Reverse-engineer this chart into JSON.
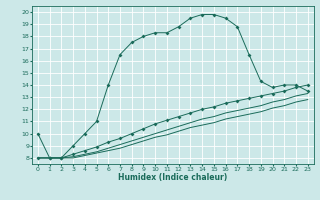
{
  "xlabel": "Humidex (Indice chaleur)",
  "bg_color": "#cce8e8",
  "grid_color": "#ffffff",
  "line_color": "#1a6b5a",
  "xlim": [
    -0.5,
    23.5
  ],
  "ylim": [
    7.5,
    20.5
  ],
  "xticks": [
    0,
    1,
    2,
    3,
    4,
    5,
    6,
    7,
    8,
    9,
    10,
    11,
    12,
    13,
    14,
    15,
    16,
    17,
    18,
    19,
    20,
    21,
    22,
    23
  ],
  "yticks": [
    8,
    9,
    10,
    11,
    12,
    13,
    14,
    15,
    16,
    17,
    18,
    19,
    20
  ],
  "curve1_x": [
    0,
    1,
    2,
    3,
    4,
    5,
    6,
    7,
    8,
    9,
    10,
    11,
    12,
    13,
    14,
    15,
    16,
    17,
    18,
    19,
    20,
    21,
    22,
    23
  ],
  "curve1_y": [
    10,
    8,
    8,
    9,
    10,
    11,
    14,
    16.5,
    17.5,
    18,
    18.3,
    18.3,
    18.8,
    19.5,
    19.8,
    19.8,
    19.5,
    18.8,
    16.5,
    14.3,
    13.8,
    14,
    14,
    13.5
  ],
  "curve2_x": [
    0,
    1,
    2,
    3,
    4,
    5,
    6,
    7,
    8,
    9,
    10,
    11,
    12,
    13,
    14,
    15,
    16,
    17,
    18,
    19,
    20,
    21,
    22,
    23
  ],
  "curve2_y": [
    8,
    8,
    8,
    8.3,
    8.6,
    8.9,
    9.3,
    9.6,
    10.0,
    10.4,
    10.8,
    11.1,
    11.4,
    11.7,
    12.0,
    12.2,
    12.5,
    12.7,
    12.9,
    13.1,
    13.3,
    13.5,
    13.8,
    14.0
  ],
  "curve3_x": [
    0,
    1,
    2,
    3,
    4,
    5,
    6,
    7,
    8,
    9,
    10,
    11,
    12,
    13,
    14,
    15,
    16,
    17,
    18,
    19,
    20,
    21,
    22,
    23
  ],
  "curve3_y": [
    8,
    8,
    8,
    8.1,
    8.3,
    8.5,
    8.8,
    9.1,
    9.4,
    9.7,
    10.0,
    10.3,
    10.6,
    10.9,
    11.2,
    11.4,
    11.7,
    11.9,
    12.1,
    12.3,
    12.6,
    12.8,
    13.1,
    13.3
  ],
  "curve4_x": [
    0,
    1,
    2,
    3,
    4,
    5,
    6,
    7,
    8,
    9,
    10,
    11,
    12,
    13,
    14,
    15,
    16,
    17,
    18,
    19,
    20,
    21,
    22,
    23
  ],
  "curve4_y": [
    8,
    8,
    8,
    8.0,
    8.2,
    8.4,
    8.6,
    8.8,
    9.1,
    9.4,
    9.7,
    9.9,
    10.2,
    10.5,
    10.7,
    10.9,
    11.2,
    11.4,
    11.6,
    11.8,
    12.1,
    12.3,
    12.6,
    12.8
  ]
}
